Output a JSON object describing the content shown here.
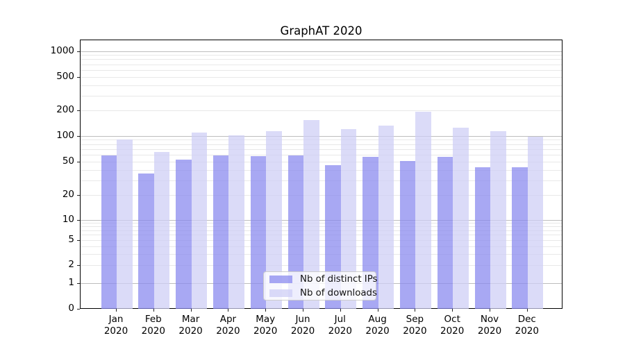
{
  "title": "GraphAT 2020",
  "chart_data": {
    "type": "bar",
    "title": "GraphAT 2020",
    "categories": [
      {
        "month": "Jan",
        "year": "2020"
      },
      {
        "month": "Feb",
        "year": "2020"
      },
      {
        "month": "Mar",
        "year": "2020"
      },
      {
        "month": "Apr",
        "year": "2020"
      },
      {
        "month": "May",
        "year": "2020"
      },
      {
        "month": "Jun",
        "year": "2020"
      },
      {
        "month": "Jul",
        "year": "2020"
      },
      {
        "month": "Aug",
        "year": "2020"
      },
      {
        "month": "Sep",
        "year": "2020"
      },
      {
        "month": "Oct",
        "year": "2020"
      },
      {
        "month": "Nov",
        "year": "2020"
      },
      {
        "month": "Dec",
        "year": "2020"
      }
    ],
    "series": [
      {
        "name": "Nb of distinct IPs",
        "color": "rgba(134,134,238,0.72)",
        "values": [
          60,
          37,
          54,
          60,
          59,
          60,
          46,
          58,
          52,
          58,
          44,
          44
        ]
      },
      {
        "name": "Nb of downloads",
        "color": "rgba(205,205,245,0.72)",
        "values": [
          93,
          66,
          112,
          104,
          115,
          156,
          123,
          134,
          196,
          127,
          115,
          100
        ]
      }
    ],
    "y_axis": {
      "scale": "symlog",
      "tick_labels": [
        "0",
        "1",
        "2",
        "5",
        "10",
        "20",
        "50",
        "100",
        "200",
        "500",
        "1000"
      ],
      "tick_values": [
        0,
        1,
        2,
        5,
        10,
        20,
        50,
        100,
        200,
        500,
        1000
      ],
      "range": [
        0,
        1200
      ]
    },
    "x_axis": {
      "tick_style": "two-line month/year"
    },
    "grid": {
      "horizontal": true,
      "minor_log_lines": true,
      "vertical": false
    },
    "legend": {
      "position": "lower center",
      "items": [
        "Nb of distinct IPs",
        "Nb of downloads"
      ]
    }
  }
}
